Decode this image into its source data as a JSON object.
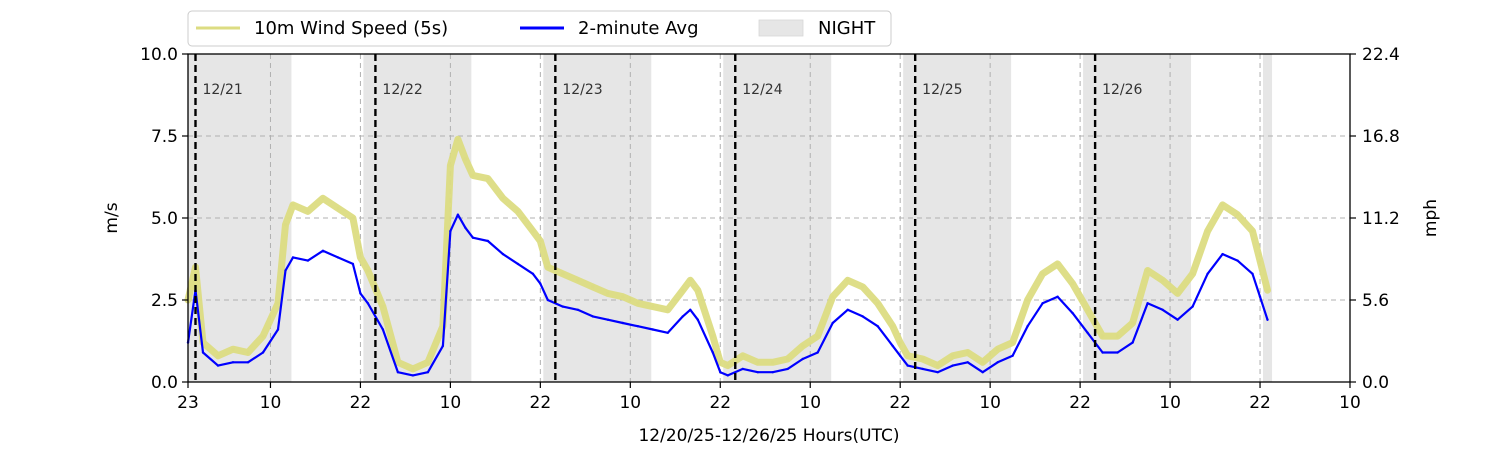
{
  "chart_data": {
    "type": "line",
    "title": "",
    "xlabel": "12/20/25-12/26/25  Hours(UTC)",
    "ylabel_left": "m/s",
    "ylabel_right": "mph",
    "x_start_hour": 23,
    "x_range_hours": [
      0,
      155
    ],
    "x_ticks": [
      {
        "hour": 0,
        "label": "23"
      },
      {
        "hour": 11,
        "label": "10"
      },
      {
        "hour": 23,
        "label": "22"
      },
      {
        "hour": 35,
        "label": "10"
      },
      {
        "hour": 47,
        "label": "22"
      },
      {
        "hour": 59,
        "label": "10"
      },
      {
        "hour": 71,
        "label": "22"
      },
      {
        "hour": 83,
        "label": "10"
      },
      {
        "hour": 95,
        "label": "22"
      },
      {
        "hour": 107,
        "label": "10"
      },
      {
        "hour": 119,
        "label": "22"
      },
      {
        "hour": 131,
        "label": "10"
      },
      {
        "hour": 143,
        "label": "22"
      },
      {
        "hour": 155,
        "label": "10"
      }
    ],
    "y_left": {
      "range": [
        0,
        10
      ],
      "ticks": [
        "0.0",
        "2.5",
        "5.0",
        "7.5",
        "10.0"
      ]
    },
    "y_right": {
      "range": [
        0,
        22.4
      ],
      "ticks": [
        "0.0",
        "5.6",
        "11.2",
        "16.8",
        "22.4"
      ]
    },
    "grid": "dashed",
    "legend_position": "top-left, above plot",
    "legend": [
      {
        "label": "10m Wind Speed (5s)",
        "color": "#dcdc82",
        "kind": "line"
      },
      {
        "label": "2-minute Avg",
        "color": "#0000ff",
        "kind": "line"
      },
      {
        "label": "NIGHT",
        "color": "#e6e6e6",
        "kind": "patch"
      }
    ],
    "night_periods": [
      [
        0,
        13.8
      ],
      [
        23.4,
        37.8
      ],
      [
        47.4,
        61.8
      ],
      [
        71.4,
        85.8
      ],
      [
        95.4,
        109.8
      ],
      [
        119.4,
        133.8
      ],
      [
        143.4,
        144.6
      ]
    ],
    "date_markers": [
      {
        "hour": 1,
        "label": "12/21"
      },
      {
        "hour": 25,
        "label": "12/22"
      },
      {
        "hour": 49,
        "label": "12/23"
      },
      {
        "hour": 73,
        "label": "12/24"
      },
      {
        "hour": 97,
        "label": "12/25"
      },
      {
        "hour": 121,
        "label": "12/26"
      }
    ],
    "series": [
      {
        "name": "10m Wind Speed (5s)",
        "color": "#dcdc82",
        "x": [
          0,
          1,
          2,
          4,
          6,
          8,
          10,
          12,
          13,
          14,
          16,
          18,
          20,
          22,
          23,
          24,
          26,
          28,
          30,
          32,
          34,
          35,
          36,
          37,
          38,
          40,
          42,
          44,
          46,
          47,
          48,
          50,
          52,
          54,
          56,
          58,
          60,
          62,
          64,
          66,
          67,
          68,
          70,
          71,
          72,
          74,
          76,
          78,
          80,
          82,
          84,
          86,
          88,
          90,
          92,
          94,
          95,
          96,
          98,
          100,
          102,
          104,
          106,
          108,
          110,
          112,
          114,
          116,
          118,
          120,
          122,
          124,
          126,
          128,
          130,
          132,
          134,
          136,
          138,
          140,
          142,
          143,
          144
        ],
        "values": [
          2.5,
          3.5,
          1.2,
          0.8,
          1.0,
          0.9,
          1.4,
          2.4,
          4.8,
          5.4,
          5.2,
          5.6,
          5.3,
          5.0,
          3.8,
          3.4,
          2.3,
          0.6,
          0.4,
          0.6,
          1.7,
          6.6,
          7.4,
          6.8,
          6.3,
          6.2,
          5.6,
          5.2,
          4.6,
          4.3,
          3.5,
          3.3,
          3.1,
          2.9,
          2.7,
          2.6,
          2.4,
          2.3,
          2.2,
          2.8,
          3.1,
          2.8,
          1.4,
          0.6,
          0.5,
          0.8,
          0.6,
          0.6,
          0.7,
          1.1,
          1.4,
          2.6,
          3.1,
          2.9,
          2.4,
          1.7,
          1.2,
          0.8,
          0.7,
          0.5,
          0.8,
          0.9,
          0.6,
          1.0,
          1.2,
          2.5,
          3.3,
          3.6,
          3.0,
          2.2,
          1.4,
          1.4,
          1.8,
          3.4,
          3.1,
          2.7,
          3.3,
          4.6,
          5.4,
          5.1,
          4.6,
          3.7,
          2.8
        ]
      },
      {
        "name": "2-minute Avg",
        "color": "#0000ff",
        "x": [
          0,
          1,
          2,
          4,
          6,
          8,
          10,
          12,
          13,
          14,
          16,
          18,
          20,
          22,
          23,
          24,
          26,
          28,
          30,
          32,
          34,
          35,
          36,
          37,
          38,
          40,
          42,
          44,
          46,
          47,
          48,
          50,
          52,
          54,
          56,
          58,
          60,
          62,
          64,
          66,
          67,
          68,
          70,
          71,
          72,
          74,
          76,
          78,
          80,
          82,
          84,
          86,
          88,
          90,
          92,
          94,
          95,
          96,
          98,
          100,
          102,
          104,
          106,
          108,
          110,
          112,
          114,
          116,
          118,
          120,
          122,
          124,
          126,
          128,
          130,
          132,
          134,
          136,
          138,
          140,
          142,
          143,
          144
        ],
        "values": [
          1.2,
          2.8,
          0.9,
          0.5,
          0.6,
          0.6,
          0.9,
          1.6,
          3.4,
          3.8,
          3.7,
          4.0,
          3.8,
          3.6,
          2.7,
          2.4,
          1.6,
          0.3,
          0.2,
          0.3,
          1.1,
          4.6,
          5.1,
          4.7,
          4.4,
          4.3,
          3.9,
          3.6,
          3.3,
          3.0,
          2.5,
          2.3,
          2.2,
          2.0,
          1.9,
          1.8,
          1.7,
          1.6,
          1.5,
          2.0,
          2.2,
          1.9,
          0.9,
          0.3,
          0.2,
          0.4,
          0.3,
          0.3,
          0.4,
          0.7,
          0.9,
          1.8,
          2.2,
          2.0,
          1.7,
          1.1,
          0.8,
          0.5,
          0.4,
          0.3,
          0.5,
          0.6,
          0.3,
          0.6,
          0.8,
          1.7,
          2.4,
          2.6,
          2.1,
          1.5,
          0.9,
          0.9,
          1.2,
          2.4,
          2.2,
          1.9,
          2.3,
          3.3,
          3.9,
          3.7,
          3.3,
          2.6,
          1.9
        ]
      }
    ]
  }
}
